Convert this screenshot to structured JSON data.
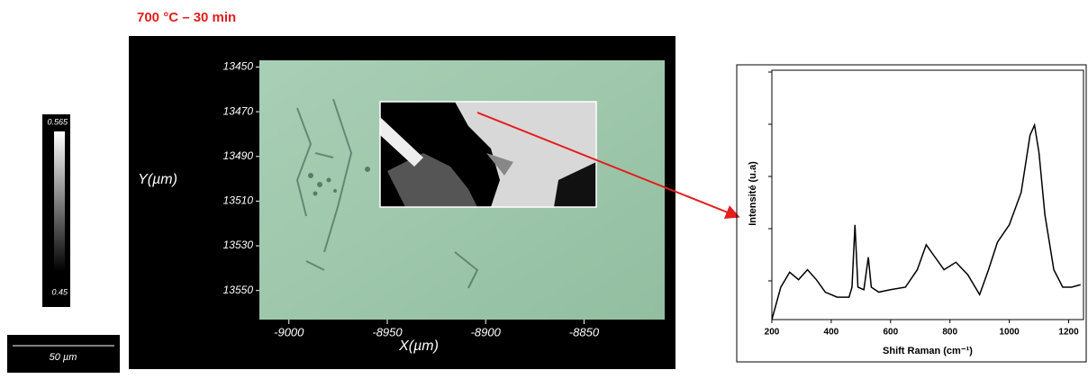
{
  "title": "700 °C – 30 min",
  "colorbar": {
    "max_label": "0.565",
    "min_label": "0.45"
  },
  "scale_bar": "50 µm",
  "map": {
    "y_label": "Y(µm)",
    "x_label": "X(µm)",
    "ylim": [
      13447,
      13563
    ],
    "yticks": [
      13450,
      13470,
      13490,
      13510,
      13530,
      13550
    ],
    "xlim": [
      -9015,
      -8809
    ],
    "xticks": [
      -9000,
      -8950,
      -8900,
      -8850
    ]
  },
  "chart_data": {
    "type": "line",
    "x_label": "Shift Raman (cm⁻¹)",
    "y_label": "Intensité (u.a)",
    "xlim": [
      200,
      1250
    ],
    "xticks": [
      200,
      400,
      600,
      800,
      1000,
      1200
    ],
    "ylim": [
      0,
      100
    ],
    "color": "#000000",
    "x": [
      200,
      230,
      260,
      290,
      320,
      350,
      380,
      420,
      460,
      470,
      480,
      490,
      510,
      525,
      535,
      560,
      600,
      650,
      690,
      720,
      750,
      780,
      820,
      860,
      900,
      930,
      960,
      1000,
      1040,
      1070,
      1085,
      1100,
      1120,
      1150,
      1180,
      1210,
      1240
    ],
    "values": [
      0,
      13,
      19,
      16,
      20,
      16,
      11,
      9,
      9,
      13,
      38,
      13,
      12,
      25,
      13,
      11,
      12,
      13,
      20,
      30,
      25,
      20,
      23,
      18,
      10,
      20,
      31,
      38,
      51,
      74,
      78,
      67,
      42,
      20,
      13,
      13,
      14
    ]
  }
}
